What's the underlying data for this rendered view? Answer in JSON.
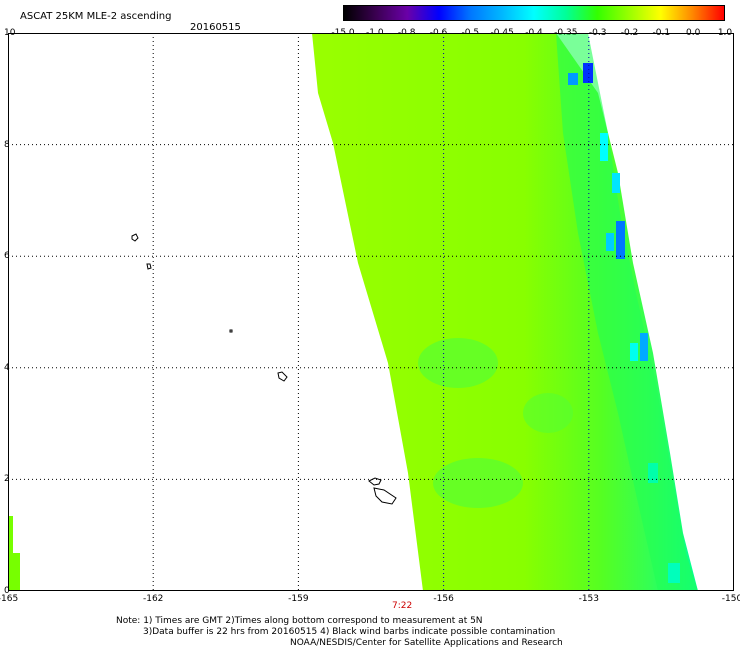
{
  "title": "ASCAT 25KM MLE-2 ascending",
  "date": "20160515",
  "colorbar": {
    "labels": [
      "-15.0",
      "-1.0",
      "-0.8",
      "-0.6",
      "-0.5",
      "-0.45",
      "-0.4",
      "-0.35",
      "-0.3",
      "-0.2",
      "-0.1",
      "0.0",
      "1.0"
    ],
    "colors": [
      "#000000",
      "#3a0050",
      "#6a00a8",
      "#0000ff",
      "#0077ff",
      "#00b8ff",
      "#00ffff",
      "#00ff99",
      "#33ff00",
      "#99ff00",
      "#ffff00",
      "#ff8800",
      "#ff0000"
    ]
  },
  "axes": {
    "x_ticks": [
      "-165",
      "-162",
      "-159",
      "-156",
      "-153",
      "-150"
    ],
    "y_ticks": [
      "0",
      "2",
      "4",
      "6",
      "8",
      "10"
    ],
    "xlim": [
      -165,
      -150
    ],
    "ylim": [
      0,
      10
    ]
  },
  "pass_time": "7:22",
  "notes": {
    "line1": "Note: 1) Times are GMT 2)Times along bottom correspond to measurement at 5N",
    "line2": "3)Data buffer is 22 hrs from 20160515 4) Black wind barbs indicate possible contamination",
    "line3": "NOAA/NESDIS/Center for Satellite Applications and Research"
  }
}
